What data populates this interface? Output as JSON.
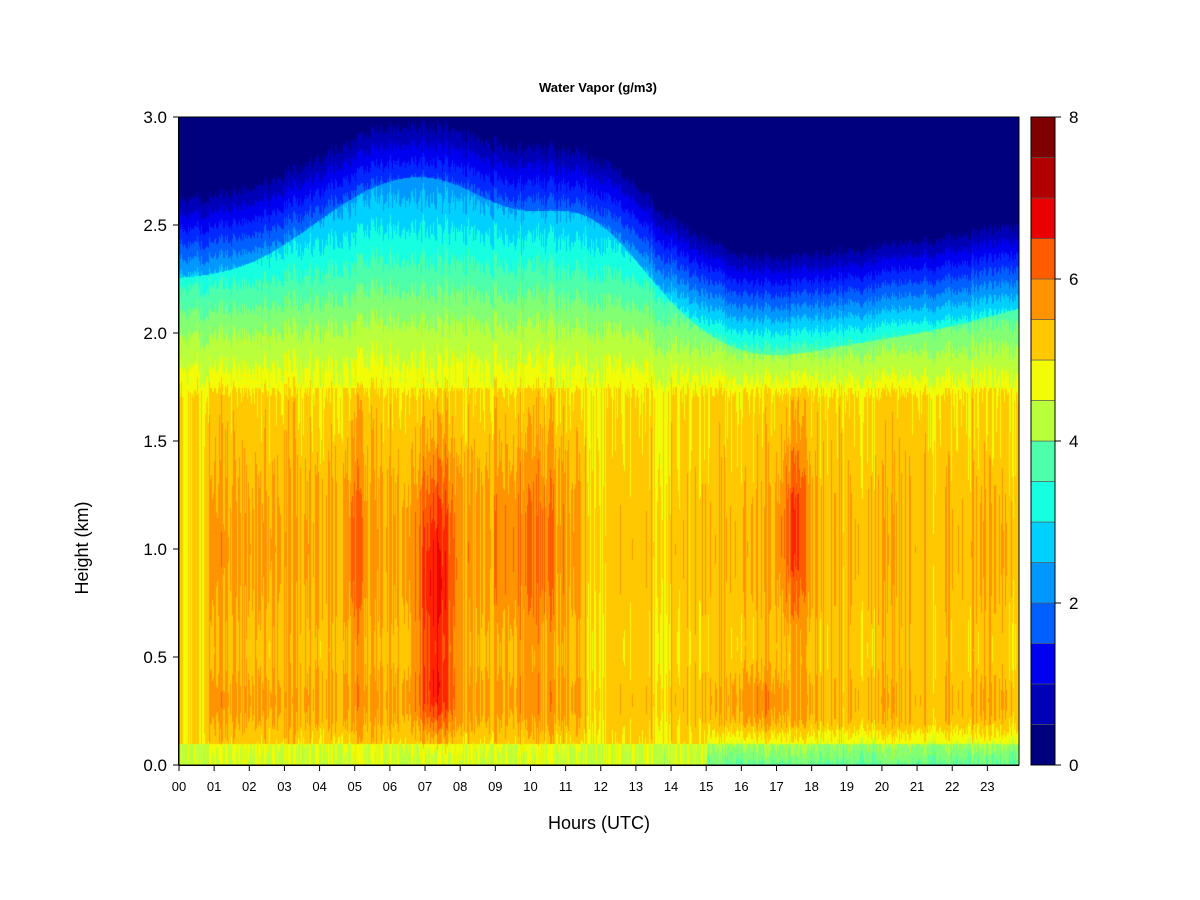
{
  "chart_data": {
    "type": "heatmap",
    "title": "Water Vapor (g/m3)",
    "xlabel": "Hours (UTC)",
    "ylabel": "Height (km)",
    "x_ticks": [
      "00",
      "01",
      "02",
      "03",
      "04",
      "05",
      "06",
      "07",
      "08",
      "09",
      "10",
      "11",
      "12",
      "13",
      "14",
      "15",
      "16",
      "17",
      "18",
      "19",
      "20",
      "21",
      "22",
      "23"
    ],
    "xlim": [
      0,
      23.9
    ],
    "ylim": [
      0,
      3.0
    ],
    "y_ticks": [
      "0.0",
      "0.5",
      "1.0",
      "1.5",
      "2.0",
      "2.5",
      "3.0"
    ],
    "colorbar": {
      "range": [
        0,
        8
      ],
      "ticks": [
        "0",
        "2",
        "4",
        "6",
        "8"
      ],
      "levels": 16,
      "colors": [
        "#00007f",
        "#0000b7",
        "#0000f0",
        "#0028ff",
        "#0060ff",
        "#0098ff",
        "#00d0ff",
        "#16ffe1",
        "#4dffaa",
        "#83ff73",
        "#baff3c",
        "#f1fc06",
        "#ffc800",
        "#ff9400",
        "#ff5c00",
        "#ff2400",
        "#ea0000",
        "#b20000",
        "#7f0000"
      ]
    },
    "features": [
      {
        "hour": 7.3,
        "height_km": 1.0,
        "value": 6.3
      },
      {
        "hour": 17.5,
        "height_km": 1.0,
        "value": 6.0
      },
      {
        "hour": 7.3,
        "height_km": 0.3,
        "value": 6.0
      }
    ],
    "grid": false,
    "legend": "colorbar-right"
  }
}
